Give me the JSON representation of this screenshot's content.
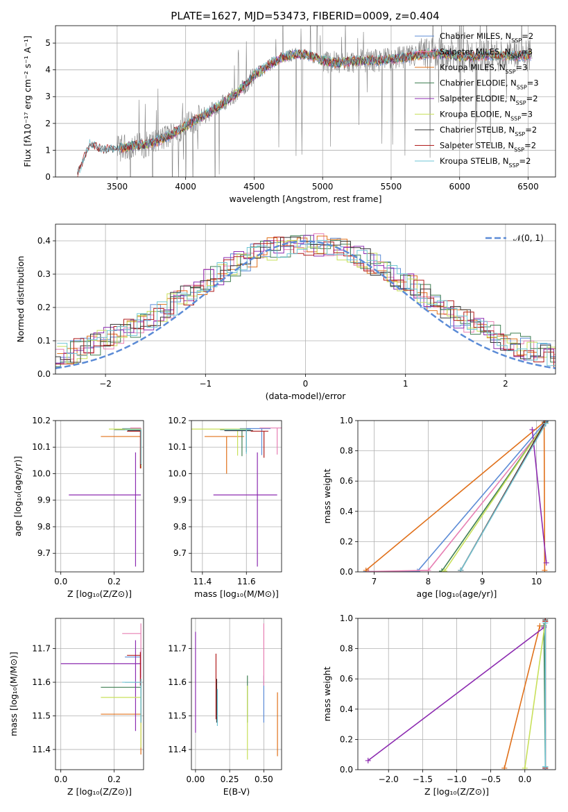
{
  "figure_title": "PLATE=1627, MJD=53473, FIBERID=0009, z=0.404",
  "colors": {
    "Chabrier MILES": "#5b8bd6",
    "Salpeter MILES": "#e77fb3",
    "Kroupa MILES": "#e0701a",
    "Chabrier ELODIE": "#3f7f52",
    "Salpeter ELODIE": "#8c2bb0",
    "Kroupa ELODIE": "#c8e05a",
    "Chabrier STELIB": "#333333",
    "Salpeter STELIB": "#b01b1b",
    "Kroupa STELIB": "#6ec6d4",
    "data": "#7f7f7f",
    "gaussian": "#5b8bd6"
  },
  "chart_data": [
    {
      "id": "spectrum",
      "type": "line",
      "title": "PLATE=1627, MJD=53473, FIBERID=0009, z=0.404",
      "xlabel": "wavelength [Angstrom, rest frame]",
      "ylabel": "Flux [fλ10⁻¹⁷ erg cm⁻² s⁻¹ A⁻¹]",
      "xlim": [
        3050,
        6700
      ],
      "ylim": [
        0,
        5.65
      ],
      "xticks": [
        3500,
        4000,
        4500,
        5000,
        5500,
        6000,
        6500
      ],
      "yticks": [
        0,
        1,
        2,
        3,
        4,
        5
      ],
      "grid": true,
      "legend_position": "top-right",
      "continuum": {
        "x": [
          3210,
          3300,
          3400,
          3500,
          3600,
          3700,
          3800,
          3900,
          4000,
          4100,
          4200,
          4300,
          4400,
          4500,
          4600,
          4700,
          4800,
          4900,
          5000,
          5100,
          5200,
          5300,
          5400,
          5500,
          5600,
          5700,
          5800,
          5900,
          6000,
          6100,
          6200,
          6300,
          6400,
          6530
        ],
        "y": [
          0.05,
          1.2,
          1.0,
          1.05,
          1.15,
          1.2,
          1.35,
          1.6,
          1.9,
          2.2,
          2.5,
          2.85,
          3.25,
          3.8,
          4.15,
          4.45,
          4.6,
          4.55,
          4.35,
          4.25,
          4.3,
          4.35,
          4.35,
          4.4,
          4.45,
          4.55,
          4.6,
          4.6,
          4.5,
          4.5,
          4.55,
          4.55,
          4.5,
          4.55
        ]
      },
      "series": [
        {
          "name": "Chabrier MILES",
          "nssp": "2",
          "xrange": [
            3520,
            6520
          ]
        },
        {
          "name": "Salpeter MILES",
          "nssp": "3",
          "xrange": [
            3520,
            6520
          ]
        },
        {
          "name": "Kroupa MILES",
          "nssp": "3",
          "xrange": [
            3520,
            6520
          ]
        },
        {
          "name": "Chabrier ELODIE",
          "nssp": "3",
          "xrange": [
            3520,
            6520
          ]
        },
        {
          "name": "Salpeter ELODIE",
          "nssp": "2",
          "xrange": [
            3520,
            6520
          ]
        },
        {
          "name": "Kroupa ELODIE",
          "nssp": "3",
          "xrange": [
            3520,
            6520
          ]
        },
        {
          "name": "Chabrier STELIB",
          "nssp": "2",
          "xrange": [
            3210,
            6520
          ]
        },
        {
          "name": "Salpeter STELIB",
          "nssp": "2",
          "xrange": [
            3210,
            6520
          ]
        },
        {
          "name": "Kroupa STELIB",
          "nssp": "2",
          "xrange": [
            3210,
            6520
          ]
        }
      ]
    },
    {
      "id": "residuals",
      "type": "step",
      "xlabel": "(data-model)/error",
      "ylabel": "Normed distribution",
      "xlim": [
        -2.5,
        2.5
      ],
      "ylim": [
        0,
        0.45
      ],
      "xticks": [
        -2,
        -1,
        0,
        1,
        2
      ],
      "yticks": [
        0.0,
        0.1,
        0.2,
        0.3,
        0.4
      ],
      "grid": true,
      "legend_position": "top-right",
      "legend": [
        "𝒩(0, 1)"
      ],
      "bin_width": 0.1
    },
    {
      "id": "age_vs_Z",
      "type": "errorbar",
      "xlabel": "Z [log₁₀(Z/Z⊙)]",
      "ylabel": "age  [log₁₀(age/yr)]",
      "xlim": [
        -0.02,
        0.31
      ],
      "ylim": [
        9.63,
        10.2
      ],
      "xticks": [
        0.0,
        0.2
      ],
      "yticks": [
        9.7,
        9.8,
        9.9,
        10.0,
        10.1,
        10.2
      ],
      "grid": true,
      "points": [
        {
          "series": "Chabrier MILES",
          "x": 0.3,
          "y": 10.17,
          "xerr": [
            0.07,
            0.0
          ],
          "yerr": [
            0.15,
            0.0
          ]
        },
        {
          "series": "Salpeter MILES",
          "x": 0.3,
          "y": 10.172,
          "xerr": [
            0.04,
            0.0
          ],
          "yerr": [
            0.15,
            0.0
          ]
        },
        {
          "series": "Kroupa MILES",
          "x": 0.3,
          "y": 10.14,
          "xerr": [
            0.15,
            0.0
          ],
          "yerr": [
            0.12,
            0.0
          ]
        },
        {
          "series": "Chabrier ELODIE",
          "x": 0.3,
          "y": 10.166,
          "xerr": [
            0.1,
            0.0
          ],
          "yerr": [
            0.14,
            0.0
          ]
        },
        {
          "series": "Salpeter ELODIE",
          "x": 0.28,
          "y": 9.92,
          "xerr": [
            0.25,
            0.02
          ],
          "yerr": [
            0.27,
            0.16
          ]
        },
        {
          "series": "Kroupa ELODIE",
          "x": 0.3,
          "y": 10.168,
          "xerr": [
            0.12,
            0.0
          ],
          "yerr": [
            0.14,
            0.0
          ]
        },
        {
          "series": "Chabrier STELIB",
          "x": 0.3,
          "y": 10.162,
          "xerr": [
            0.05,
            0.0
          ],
          "yerr": [
            0.13,
            0.0
          ]
        },
        {
          "series": "Salpeter STELIB",
          "x": 0.298,
          "y": 10.16,
          "xerr": [
            0.05,
            0.0
          ],
          "yerr": [
            0.14,
            0.0
          ]
        },
        {
          "series": "Kroupa STELIB",
          "x": 0.3,
          "y": 10.165,
          "xerr": [
            0.06,
            0.0
          ],
          "yerr": [
            0.13,
            0.0
          ]
        }
      ]
    },
    {
      "id": "age_vs_mass",
      "type": "errorbar",
      "xlabel": "mass [log₁₀(M/M⊙)]",
      "xlim": [
        11.35,
        11.76
      ],
      "ylim": [
        9.63,
        10.2
      ],
      "xticks": [
        11.4,
        11.6
      ],
      "yticks": [
        9.7,
        9.8,
        9.9,
        10.0,
        10.1,
        10.2
      ],
      "grid": true,
      "points": [
        {
          "series": "Chabrier MILES",
          "x": 11.67,
          "y": 10.17,
          "xerr": [
            0.1,
            0.04
          ],
          "yerr": [
            0.1,
            0.0
          ]
        },
        {
          "series": "Salpeter MILES",
          "x": 11.74,
          "y": 10.172,
          "xerr": [
            0.08,
            0.02
          ],
          "yerr": [
            0.1,
            0.0
          ]
        },
        {
          "series": "Kroupa MILES",
          "x": 11.51,
          "y": 10.14,
          "xerr": [
            0.1,
            0.08
          ],
          "yerr": [
            0.14,
            0.0
          ]
        },
        {
          "series": "Chabrier ELODIE",
          "x": 11.58,
          "y": 10.166,
          "xerr": [
            0.1,
            0.04
          ],
          "yerr": [
            0.1,
            0.0
          ]
        },
        {
          "series": "Salpeter ELODIE",
          "x": 11.65,
          "y": 9.92,
          "xerr": [
            0.2,
            0.09
          ],
          "yerr": [
            0.27,
            0.16
          ]
        },
        {
          "series": "Kroupa ELODIE",
          "x": 11.56,
          "y": 10.168,
          "xerr": [
            0.22,
            0.04
          ],
          "yerr": [
            0.1,
            0.0
          ]
        },
        {
          "series": "Chabrier STELIB",
          "x": 11.6,
          "y": 10.162,
          "xerr": [
            0.1,
            0.03
          ],
          "yerr": [
            0.08,
            0.0
          ]
        },
        {
          "series": "Salpeter STELIB",
          "x": 11.68,
          "y": 10.16,
          "xerr": [
            0.06,
            0.02
          ],
          "yerr": [
            0.1,
            0.0
          ]
        },
        {
          "series": "Kroupa STELIB",
          "x": 11.6,
          "y": 10.165,
          "xerr": [
            0.1,
            0.02
          ],
          "yerr": [
            0.09,
            0.0
          ]
        }
      ]
    },
    {
      "id": "weight_vs_age",
      "type": "line",
      "xlabel": "age  [log₁₀(age/yr)]",
      "ylabel": "mass weight",
      "xlim": [
        6.7,
        10.35
      ],
      "ylim": [
        0,
        1.0
      ],
      "xticks": [
        7,
        8,
        9,
        10
      ],
      "yticks": [
        0.0,
        0.2,
        0.4,
        0.6,
        0.8,
        1.0
      ],
      "grid": true,
      "series": [
        {
          "name": "Chabrier MILES",
          "x": [
            6.85,
            7.8,
            10.17
          ],
          "y": [
            0.002,
            0.003,
            0.995
          ]
        },
        {
          "name": "Salpeter MILES",
          "x": [
            6.9,
            8.0,
            10.17
          ],
          "y": [
            0.002,
            0.01,
            0.98
          ]
        },
        {
          "name": "Kroupa MILES",
          "x": [
            6.85,
            10.14,
            10.15
          ],
          "y": [
            0.01,
            0.99,
            0.01
          ]
        },
        {
          "name": "Chabrier ELODIE",
          "x": [
            8.25,
            10.17
          ],
          "y": [
            0.005,
            0.99
          ]
        },
        {
          "name": "Salpeter ELODIE",
          "x": [
            9.92,
            10.18
          ],
          "y": [
            0.94,
            0.06
          ]
        },
        {
          "name": "Kroupa ELODIE",
          "x": [
            8.3,
            10.17
          ],
          "y": [
            0.005,
            0.99
          ]
        },
        {
          "name": "Chabrier STELIB",
          "x": [
            8.6,
            10.16
          ],
          "y": [
            0.01,
            0.99
          ]
        },
        {
          "name": "Salpeter STELIB",
          "x": [
            8.6,
            10.16
          ],
          "y": [
            0.01,
            0.98
          ]
        },
        {
          "name": "Kroupa STELIB",
          "x": [
            8.6,
            10.17
          ],
          "y": [
            0.01,
            0.98
          ]
        }
      ]
    },
    {
      "id": "mass_vs_Z",
      "type": "errorbar",
      "xlabel": "Z [log₁₀(Z/Z⊙)]",
      "ylabel": "mass [log₁₀(M/M⊙)]",
      "xlim": [
        -0.02,
        0.31
      ],
      "ylim": [
        11.34,
        11.79
      ],
      "xticks": [
        0.0,
        0.2
      ],
      "yticks": [
        11.4,
        11.5,
        11.6,
        11.7
      ],
      "grid": true,
      "points": [
        {
          "series": "Chabrier MILES",
          "x": 0.3,
          "y": 11.675,
          "xerr": [
            0.06,
            0.0
          ],
          "yerr": [
            0.06,
            0.02
          ]
        },
        {
          "series": "Salpeter MILES",
          "x": 0.3,
          "y": 11.745,
          "xerr": [
            0.07,
            0.0
          ],
          "yerr": [
            0.15,
            0.03
          ]
        },
        {
          "series": "Kroupa MILES",
          "x": 0.3,
          "y": 11.505,
          "xerr": [
            0.15,
            0.0
          ],
          "yerr": [
            0.12,
            0.02
          ]
        },
        {
          "series": "Chabrier ELODIE",
          "x": 0.3,
          "y": 11.585,
          "xerr": [
            0.15,
            0.0
          ],
          "yerr": [
            0.1,
            0.01
          ]
        },
        {
          "series": "Salpeter ELODIE",
          "x": 0.28,
          "y": 11.655,
          "xerr": [
            0.28,
            0.02
          ],
          "yerr": [
            0.2,
            0.07
          ]
        },
        {
          "series": "Kroupa ELODIE",
          "x": 0.3,
          "y": 11.555,
          "xerr": [
            0.15,
            0.0
          ],
          "yerr": [
            0.15,
            0.01
          ]
        },
        {
          "series": "Chabrier STELIB",
          "x": 0.3,
          "y": 11.6,
          "xerr": [
            0.06,
            0.0
          ],
          "yerr": [
            0.12,
            0.01
          ]
        },
        {
          "series": "Salpeter STELIB",
          "x": 0.298,
          "y": 11.68,
          "xerr": [
            0.05,
            0.0
          ],
          "yerr": [
            0.09,
            0.01
          ]
        },
        {
          "series": "Kroupa STELIB",
          "x": 0.3,
          "y": 11.6,
          "xerr": [
            0.07,
            0.0
          ],
          "yerr": [
            0.12,
            0.01
          ]
        }
      ]
    },
    {
      "id": "mass_vs_ebv",
      "type": "errorbar",
      "xlabel": "E(B-V)",
      "xlim": [
        -0.03,
        0.63
      ],
      "ylim": [
        11.34,
        11.79
      ],
      "xticks": [
        0.0,
        0.25,
        0.5
      ],
      "xtick_labels": [
        "0.00",
        "0.25",
        "0.50"
      ],
      "yticks": [
        11.4,
        11.5,
        11.6,
        11.7
      ],
      "grid": true,
      "points": [
        {
          "series": "Chabrier MILES",
          "x": 0.5,
          "y": 11.6,
          "yerr": [
            0.12,
            0.02
          ]
        },
        {
          "series": "Salpeter MILES",
          "x": 0.5,
          "y": 11.74,
          "yerr": [
            0.15,
            0.035
          ]
        },
        {
          "series": "Kroupa MILES",
          "x": 0.6,
          "y": 11.5,
          "yerr": [
            0.12,
            0.07
          ]
        },
        {
          "series": "Chabrier ELODIE",
          "x": 0.38,
          "y": 11.58,
          "yerr": [
            0.1,
            0.04
          ]
        },
        {
          "series": "Salpeter ELODIE",
          "x": 0.0,
          "y": 11.65,
          "yerr": [
            0.2,
            0.1
          ]
        },
        {
          "series": "Kroupa ELODIE",
          "x": 0.38,
          "y": 11.55,
          "yerr": [
            0.18,
            0.04
          ]
        },
        {
          "series": "Chabrier STELIB",
          "x": 0.155,
          "y": 11.58,
          "yerr": [
            0.1,
            0.03
          ]
        },
        {
          "series": "Salpeter STELIB",
          "x": 0.15,
          "y": 11.62,
          "yerr": [
            0.13,
            0.065
          ]
        },
        {
          "series": "Kroupa STELIB",
          "x": 0.16,
          "y": 11.54,
          "yerr": [
            0.07,
            0.04
          ]
        }
      ]
    },
    {
      "id": "weight_vs_Z",
      "type": "line",
      "xlabel": "Z [log₁₀(Z/Z⊙)]",
      "ylabel": "mass weight",
      "xlim": [
        -2.45,
        0.45
      ],
      "ylim": [
        0,
        1.0
      ],
      "xticks": [
        -2.0,
        -1.5,
        -1.0,
        -0.5,
        0.0
      ],
      "yticks": [
        0.0,
        0.2,
        0.4,
        0.6,
        0.8,
        1.0
      ],
      "grid": true,
      "series": [
        {
          "name": "Chabrier MILES",
          "x": [
            0.3,
            0.3
          ],
          "y": [
            0.0,
            0.97
          ]
        },
        {
          "name": "Salpeter MILES",
          "x": [
            0.3,
            0.3
          ],
          "y": [
            0.02,
            0.98
          ]
        },
        {
          "name": "Kroupa MILES",
          "x": [
            -0.3,
            0.22
          ],
          "y": [
            0.01,
            0.95
          ]
        },
        {
          "name": "Chabrier ELODIE",
          "x": [
            0.28,
            0.3
          ],
          "y": [
            0.95,
            0.02
          ]
        },
        {
          "name": "Salpeter ELODIE",
          "x": [
            -2.3,
            0.28
          ],
          "y": [
            0.06,
            0.94
          ]
        },
        {
          "name": "Kroupa ELODIE",
          "x": [
            0.0,
            0.3
          ],
          "y": [
            0.01,
            0.98
          ]
        },
        {
          "name": "Chabrier STELIB",
          "x": [
            0.3,
            0.3
          ],
          "y": [
            0.01,
            0.99
          ]
        },
        {
          "name": "Salpeter STELIB",
          "x": [
            0.3,
            0.3
          ],
          "y": [
            0.01,
            0.98
          ]
        },
        {
          "name": "Kroupa STELIB",
          "x": [
            0.3,
            0.3
          ],
          "y": [
            0.02,
            0.97
          ]
        }
      ]
    }
  ]
}
